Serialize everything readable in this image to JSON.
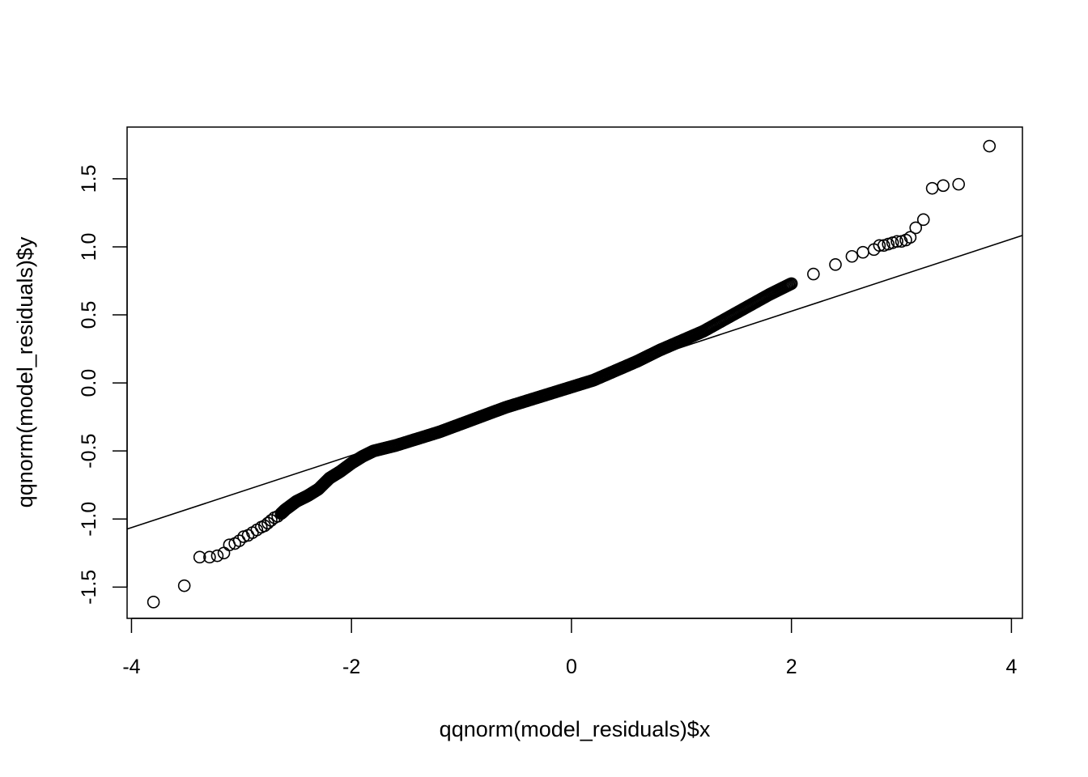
{
  "chart_data": {
    "type": "scatter",
    "title": "",
    "xlabel": "qqnorm(model_residuals)$x",
    "ylabel": "qqnorm(model_residuals)$y",
    "xlim": [
      -4.04,
      4.1
    ],
    "ylim": [
      -1.73,
      1.88
    ],
    "x_ticks": [
      -4,
      -2,
      0,
      2,
      4
    ],
    "y_ticks": [
      -1.5,
      -1.0,
      -0.5,
      0.0,
      0.5,
      1.0,
      1.5
    ],
    "x_tick_labels": [
      "-4",
      "-2",
      "0",
      "2",
      "4"
    ],
    "y_tick_labels": [
      "-1.5",
      "-1.0",
      "-0.5",
      "0.0",
      "0.5",
      "1.0",
      "1.5"
    ],
    "grid": false,
    "legend": "none",
    "reference_line": {
      "intercept": -0.003,
      "slope": 0.265
    },
    "x_range_of_points": [
      -3.8,
      3.8
    ],
    "series": [
      {
        "values_xy": [
          [
            -3.8,
            -1.61
          ],
          [
            -3.52,
            -1.49
          ],
          [
            -3.38,
            -1.28
          ],
          [
            -3.29,
            -1.28
          ],
          [
            -3.22,
            -1.27
          ],
          [
            -3.16,
            -1.25
          ],
          [
            -3.11,
            -1.19
          ],
          [
            -3.06,
            -1.18
          ],
          [
            -3.02,
            -1.16
          ],
          [
            -2.98,
            -1.13
          ],
          [
            -2.94,
            -1.12
          ],
          [
            -2.9,
            -1.1
          ],
          [
            -2.86,
            -1.08
          ],
          [
            -2.82,
            -1.06
          ],
          [
            -2.79,
            -1.05
          ],
          [
            -2.76,
            -1.03
          ],
          [
            -2.73,
            -1.01
          ],
          [
            -2.7,
            -0.99
          ],
          [
            -2.67,
            -0.98
          ],
          [
            -2.64,
            -0.96
          ],
          [
            -2.6,
            -0.93
          ],
          [
            -2.5,
            -0.87
          ],
          [
            -2.4,
            -0.83
          ],
          [
            -2.3,
            -0.78
          ],
          [
            -2.2,
            -0.7
          ],
          [
            -2.1,
            -0.65
          ],
          [
            -2.0,
            -0.59
          ],
          [
            -1.9,
            -0.54
          ],
          [
            -1.8,
            -0.5
          ],
          [
            -1.6,
            -0.46
          ],
          [
            -1.4,
            -0.41
          ],
          [
            -1.2,
            -0.36
          ],
          [
            -1.0,
            -0.3
          ],
          [
            -0.8,
            -0.24
          ],
          [
            -0.6,
            -0.18
          ],
          [
            -0.4,
            -0.13
          ],
          [
            -0.2,
            -0.08
          ],
          [
            0.0,
            -0.03
          ],
          [
            0.2,
            0.02
          ],
          [
            0.4,
            0.09
          ],
          [
            0.6,
            0.16
          ],
          [
            0.8,
            0.24
          ],
          [
            1.0,
            0.31
          ],
          [
            1.2,
            0.38
          ],
          [
            1.4,
            0.47
          ],
          [
            1.6,
            0.56
          ],
          [
            1.8,
            0.65
          ],
          [
            2.0,
            0.73
          ],
          [
            2.2,
            0.8
          ],
          [
            2.4,
            0.87
          ],
          [
            2.55,
            0.93
          ],
          [
            2.65,
            0.96
          ],
          [
            2.75,
            0.98
          ],
          [
            2.8,
            1.01
          ],
          [
            2.84,
            1.01
          ],
          [
            2.88,
            1.02
          ],
          [
            2.92,
            1.03
          ],
          [
            2.96,
            1.04
          ],
          [
            3.0,
            1.04
          ],
          [
            3.04,
            1.05
          ],
          [
            3.08,
            1.07
          ],
          [
            3.13,
            1.14
          ],
          [
            3.2,
            1.2
          ],
          [
            3.28,
            1.43
          ],
          [
            3.38,
            1.45
          ],
          [
            3.52,
            1.46
          ],
          [
            3.8,
            1.74
          ]
        ]
      }
    ]
  }
}
